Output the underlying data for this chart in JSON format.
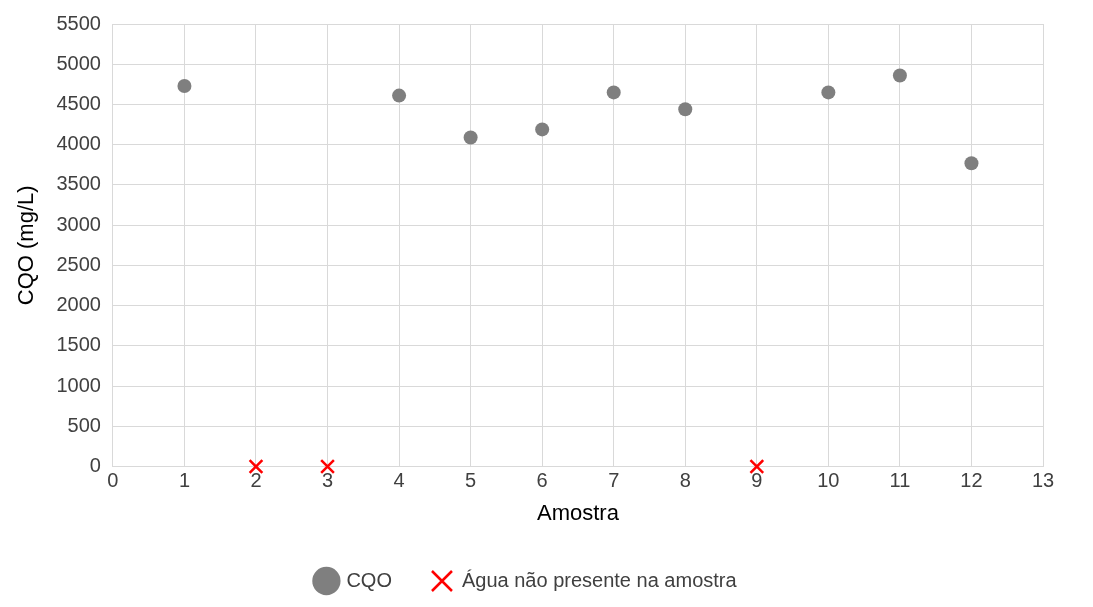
{
  "chart_data": {
    "type": "scatter",
    "xlabel": "Amostra",
    "ylabel": "CQO (mg/L)",
    "xlim": [
      0,
      13
    ],
    "xticks": [
      0,
      1,
      2,
      3,
      4,
      5,
      6,
      7,
      8,
      9,
      10,
      11,
      12,
      13
    ],
    "ylim": [
      0,
      5500
    ],
    "yticks": [
      0,
      500,
      1000,
      1500,
      2000,
      2500,
      3000,
      3500,
      4000,
      4500,
      5000,
      5500
    ],
    "grid": true,
    "legend": "bottom",
    "series": [
      {
        "name": "CQO",
        "color": "#7f7f7f",
        "marker": "circle",
        "x": [
          1,
          4,
          5,
          6,
          7,
          8,
          10,
          11,
          12
        ],
        "values": [
          4730,
          4610,
          4090,
          4190,
          4650,
          4440,
          4650,
          4860,
          3770
        ]
      },
      {
        "name": "Água não presente na amostra",
        "color": "#ff0000",
        "marker": "cross",
        "x": [
          2,
          3,
          9
        ],
        "values": [
          0,
          0,
          0
        ]
      }
    ]
  }
}
